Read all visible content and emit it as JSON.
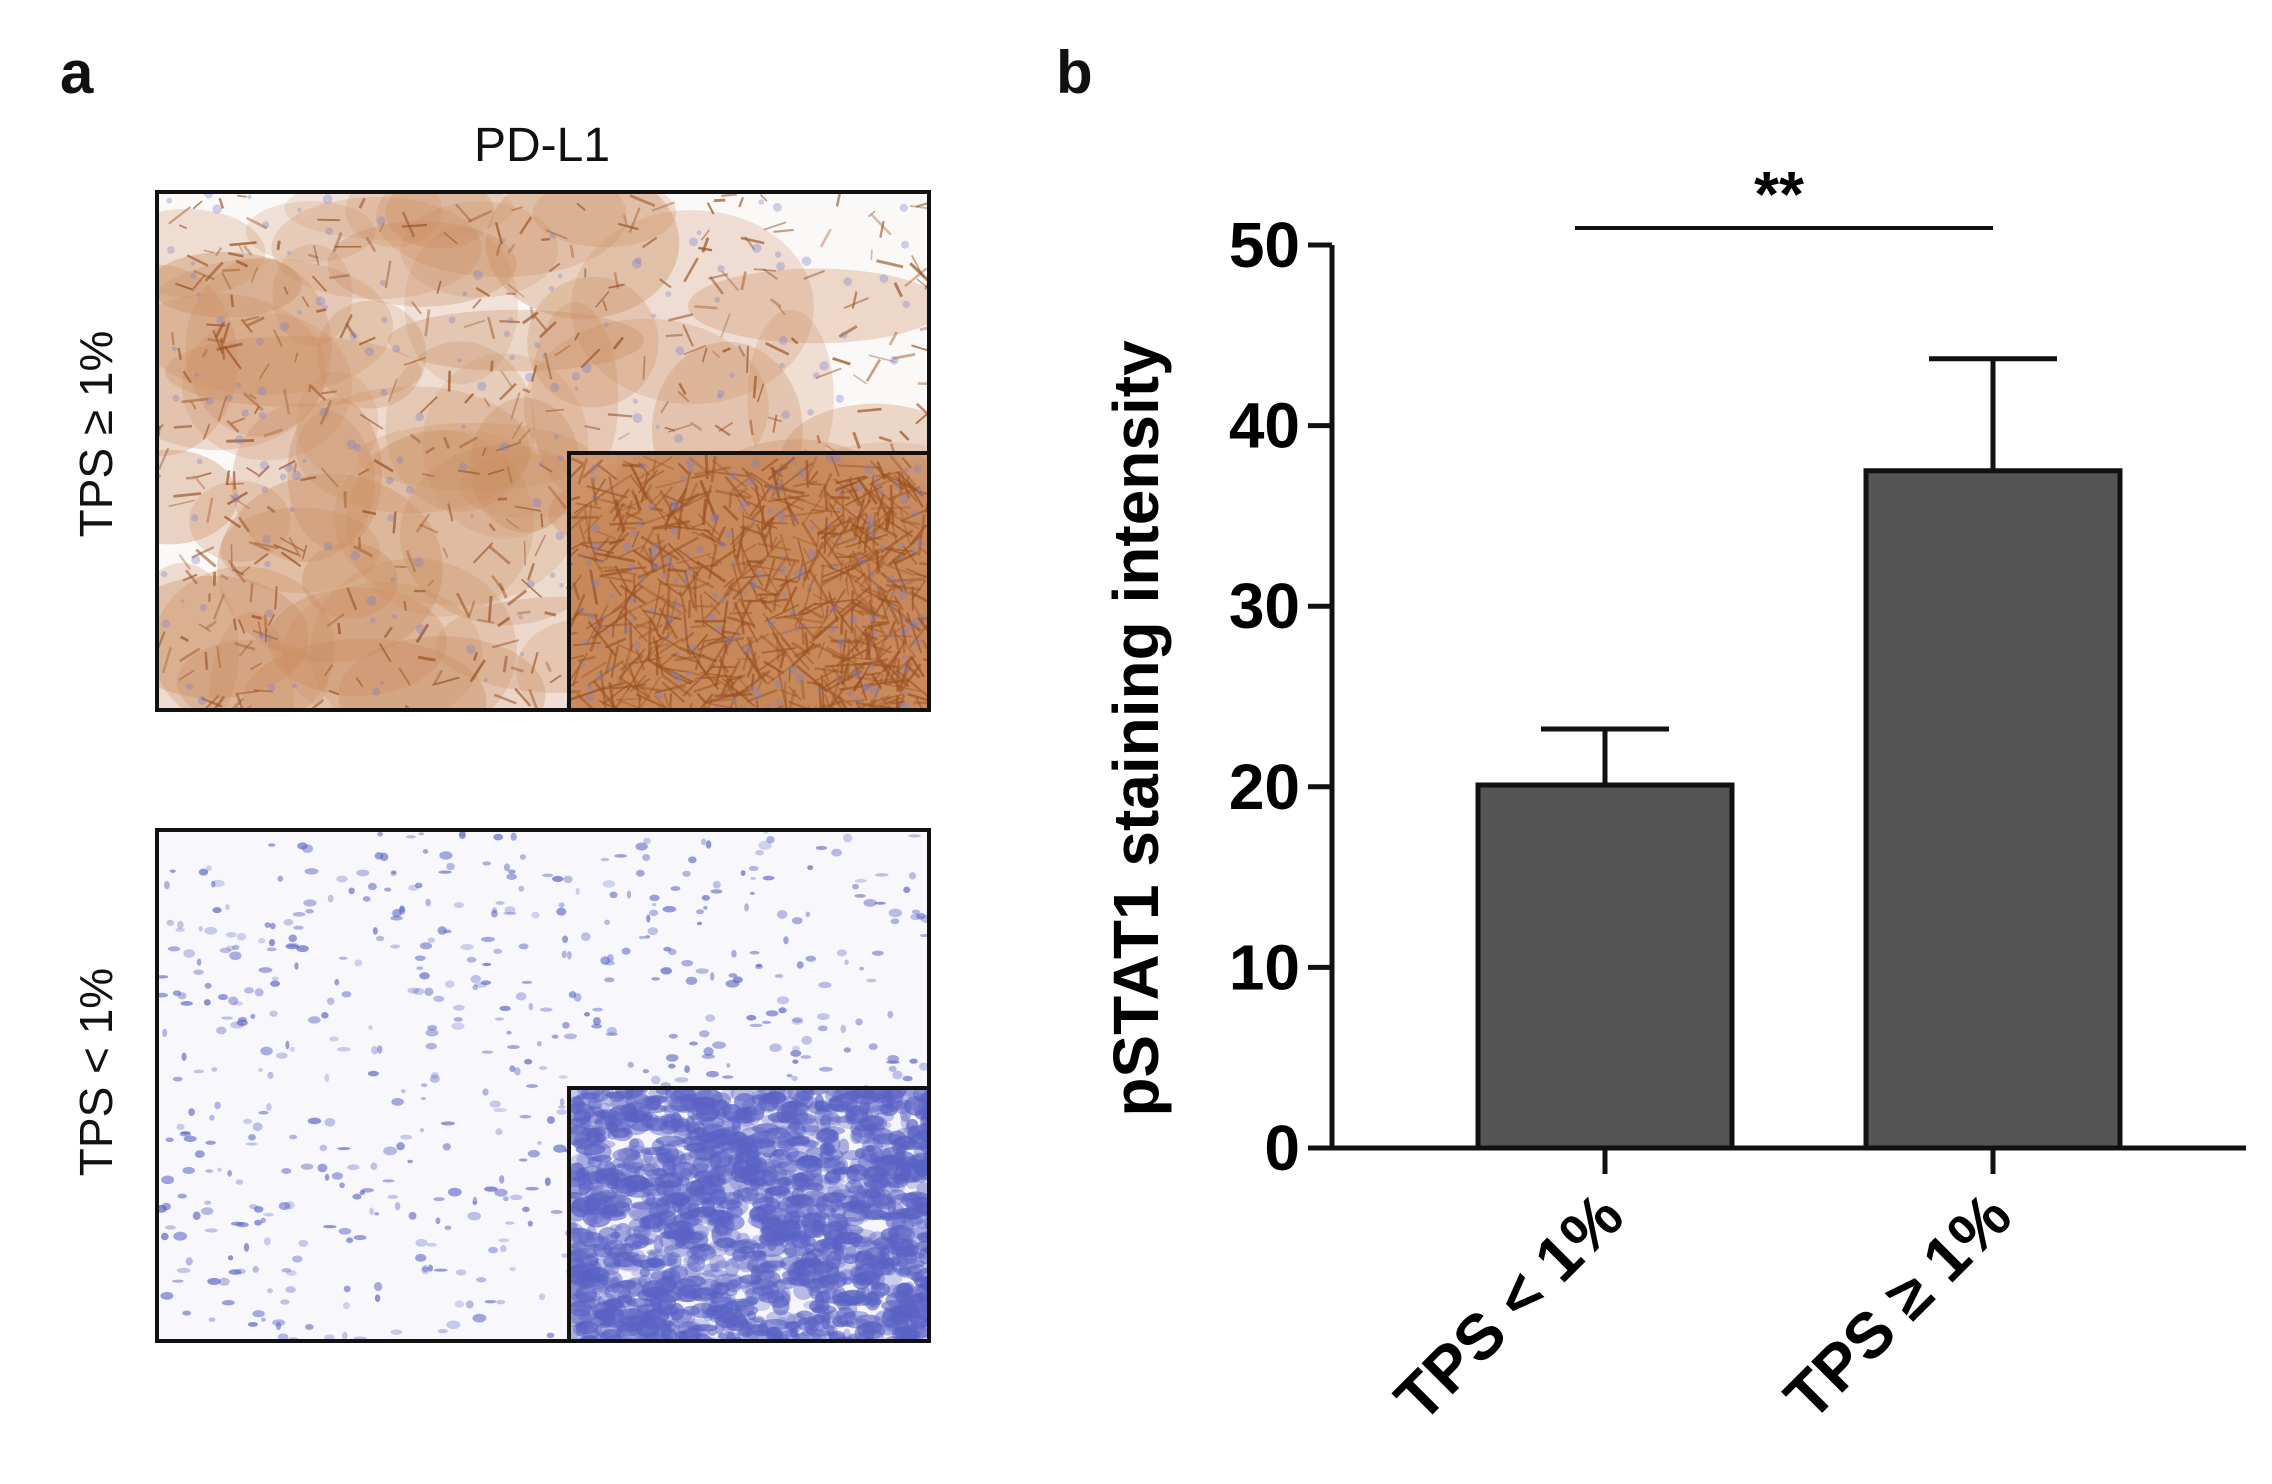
{
  "panel_a": {
    "letter": "a",
    "column_header": "PD-L1",
    "rows": [
      {
        "label": "TPS ≥ 1%",
        "stain": "positive"
      },
      {
        "label": "TPS < 1%",
        "stain": "negative"
      }
    ]
  },
  "panel_b": {
    "letter": "b"
  },
  "chart_data": {
    "type": "bar",
    "categories": [
      "TPS < 1%",
      "TPS ≥ 1%"
    ],
    "values": [
      20.1,
      37.5
    ],
    "error_upper": [
      23.2,
      43.7
    ],
    "ylabel": "pSTAT1 staining intensity",
    "xlabel": "",
    "ylim": [
      0,
      50
    ],
    "yticks": [
      0,
      10,
      20,
      30,
      40,
      50
    ],
    "significance": "**",
    "grid": false,
    "colors": {
      "bar": "#555555",
      "axis": "#111111"
    }
  }
}
